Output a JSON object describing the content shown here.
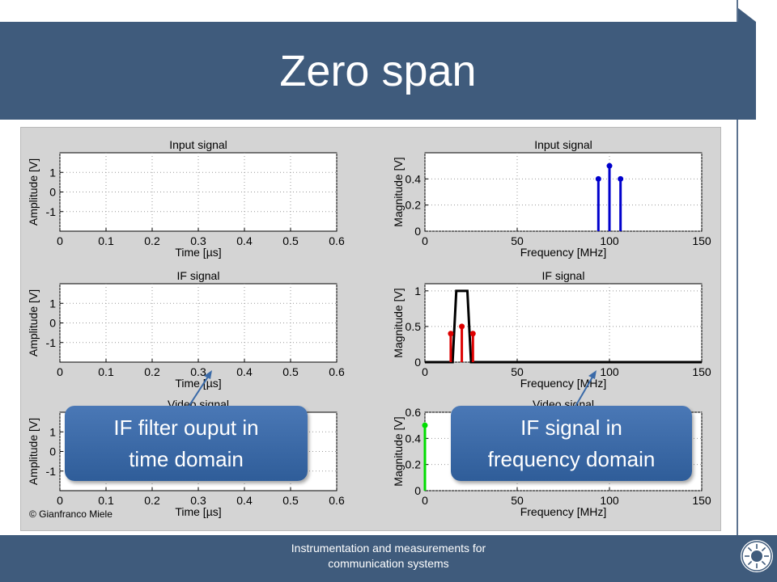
{
  "slide": {
    "title": "Zero span"
  },
  "footer": {
    "line1": "Instrumentation  and measurements for",
    "line2": "communication systems"
  },
  "copyright": "© Gianfranco Miele",
  "callouts": {
    "left": {
      "line1": "IF filter ouput in",
      "line2": "time domain"
    },
    "right": {
      "line1": "IF signal in",
      "line2": "frequency domain"
    }
  },
  "colors": {
    "title_bar": "#3f5b7c",
    "callout": "#3a6aa8",
    "blue_stem": "#0000cc",
    "red_stem": "#dd0000",
    "green_stem": "#00dd00",
    "filter_line": "#000000"
  },
  "chart_data": [
    {
      "type": "line",
      "title": "Input signal",
      "xlabel": "Time [µs]",
      "ylabel": "Amplitude [V]",
      "xlim": [
        0,
        0.6
      ],
      "ylim": [
        -2,
        2
      ],
      "xticks": [
        "0",
        "0.1",
        "0.2",
        "0.3",
        "0.4",
        "0.5",
        "0.6"
      ],
      "yticks": [
        "-1",
        "0",
        "1"
      ],
      "grid": true,
      "series": []
    },
    {
      "type": "stem",
      "title": "Input signal",
      "xlabel": "Frequency [MHz]",
      "ylabel": "Magnitude [V]",
      "xlim": [
        0,
        150
      ],
      "ylim": [
        0,
        0.6
      ],
      "xticks": [
        "0",
        "50",
        "100",
        "150"
      ],
      "yticks": [
        "0",
        "0.2",
        "0.4"
      ],
      "grid": true,
      "series": [
        {
          "x": [
            94,
            100,
            106
          ],
          "y": [
            0.4,
            0.5,
            0.4
          ]
        }
      ]
    },
    {
      "type": "line",
      "title": "IF signal",
      "xlabel": "Time [µs]",
      "ylabel": "Amplitude [V]",
      "xlim": [
        0,
        0.6
      ],
      "ylim": [
        -2,
        2
      ],
      "xticks": [
        "0",
        "0.1",
        "0.2",
        "0.3",
        "0.4",
        "0.5",
        "0.6"
      ],
      "yticks": [
        "-1",
        "0",
        "1"
      ],
      "grid": true,
      "series": []
    },
    {
      "type": "stem",
      "title": "IF signal",
      "xlabel": "Frequency [MHz]",
      "ylabel": "Magnitude [V]",
      "xlim": [
        0,
        150
      ],
      "ylim": [
        0,
        1.1
      ],
      "xticks": [
        "0",
        "50",
        "100",
        "150"
      ],
      "yticks": [
        "0",
        "0.5",
        "1"
      ],
      "grid": true,
      "series": [
        {
          "x": [
            14,
            20,
            26
          ],
          "y": [
            0.4,
            0.5,
            0.4
          ]
        }
      ],
      "filter": {
        "x": [
          0,
          15,
          17,
          23,
          25,
          150
        ],
        "y": [
          0,
          0,
          1,
          1,
          0,
          0
        ]
      }
    },
    {
      "type": "line",
      "title": "Video signal",
      "xlabel": "Time [µs]",
      "ylabel": "Amplitude [V]",
      "xlim": [
        0,
        0.6
      ],
      "ylim": [
        -2,
        2
      ],
      "xticks": [
        "0",
        "0.1",
        "0.2",
        "0.3",
        "0.4",
        "0.5",
        "0.6"
      ],
      "yticks": [
        "-1",
        "0",
        "1"
      ],
      "grid": true,
      "series": []
    },
    {
      "type": "stem",
      "title": "Video signal",
      "xlabel": "Frequency [MHz]",
      "ylabel": "Magnitude [V]",
      "xlim": [
        0,
        150
      ],
      "ylim": [
        0,
        0.6
      ],
      "xticks": [
        "0",
        "50",
        "100",
        "150"
      ],
      "yticks": [
        "0",
        "0.2",
        "0.4",
        "0.6"
      ],
      "grid": true,
      "series": [
        {
          "x": [
            0
          ],
          "y": [
            0.5
          ]
        }
      ]
    }
  ]
}
